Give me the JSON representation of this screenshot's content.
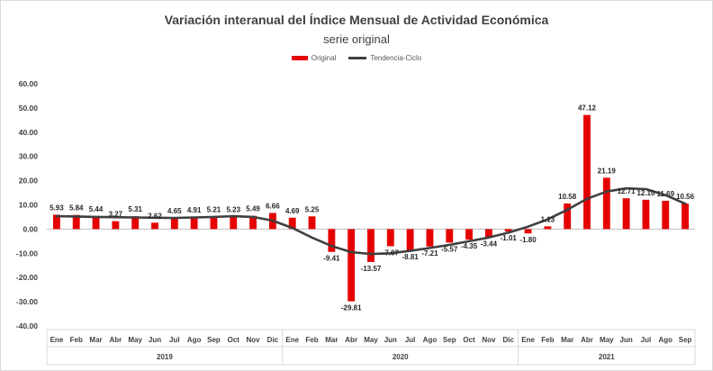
{
  "chart_data": {
    "type": "bar",
    "title": "Variación interanual del Índice Mensual de Actividad Económica",
    "subtitle": "serie original",
    "legend": {
      "placement": "top",
      "entries": [
        "Original",
        "Tendencia-Ciclo"
      ]
    },
    "years": [
      {
        "label": "2019",
        "count": 12
      },
      {
        "label": "2020",
        "count": 12
      },
      {
        "label": "2021",
        "count": 9
      }
    ],
    "categories": [
      "Ene",
      "Feb",
      "Mar",
      "Abr",
      "May",
      "Jun",
      "Jul",
      "Ago",
      "Sep",
      "Oct",
      "Nov",
      "Dic",
      "Ene",
      "Feb",
      "Mar",
      "Abr",
      "May",
      "Jun",
      "Jul",
      "Ago",
      "Sep",
      "Oct",
      "Nov",
      "Dic",
      "Ene",
      "Feb",
      "Mar",
      "Abr",
      "May",
      "Jun",
      "Jul",
      "Ago",
      "Sep"
    ],
    "series": [
      {
        "name": "Original",
        "type": "bar",
        "color": "#e60000",
        "values": [
          5.93,
          5.84,
          5.44,
          3.27,
          5.31,
          2.62,
          4.65,
          4.91,
          5.21,
          5.23,
          5.49,
          6.66,
          4.69,
          5.25,
          -9.41,
          -29.81,
          -13.57,
          -7.07,
          -8.81,
          -7.21,
          -5.57,
          -4.35,
          -3.44,
          -1.01,
          -1.8,
          1.13,
          10.58,
          47.12,
          21.19,
          12.71,
          12.1,
          11.69,
          10.56
        ],
        "labels": [
          "5.93",
          "5.84",
          "5.44",
          "3.27",
          "5.31",
          "2.62",
          "4.65",
          "4.91",
          "5.21",
          "5.23",
          "5.49",
          "6.66",
          "4.69",
          "5.25",
          "-9.41",
          "-29.81",
          "-13.57",
          "-7.07",
          "-8.81",
          "-7.21",
          "-5.57",
          "-4.35",
          "-3.44",
          "-1.01",
          "-1.80",
          "1.13",
          "10.58",
          "47.12",
          "21.19",
          "12.71",
          "12.10",
          "11.69",
          "10.56"
        ]
      },
      {
        "name": "Tendencia-Ciclo",
        "type": "line",
        "color": "#404040",
        "values": [
          5.3,
          5.2,
          5.0,
          4.9,
          4.8,
          4.7,
          4.6,
          4.8,
          5.0,
          5.3,
          5.0,
          3.5,
          0.5,
          -3.5,
          -7.0,
          -9.5,
          -10.3,
          -10.0,
          -9.0,
          -7.8,
          -6.5,
          -5.0,
          -3.5,
          -1.5,
          1.0,
          4.0,
          8.0,
          12.5,
          15.5,
          16.8,
          16.5,
          14.0,
          10.5
        ]
      }
    ],
    "ylim": [
      -40,
      60
    ],
    "yticks": [
      "-40.00",
      "-30.00",
      "-20.00",
      "-10.00",
      "0.00",
      "10.00",
      "20.00",
      "30.00",
      "40.00",
      "50.00",
      "60.00"
    ],
    "ytick_values": [
      -40,
      -30,
      -20,
      -10,
      0,
      10,
      20,
      30,
      40,
      50,
      60
    ],
    "grid": false
  }
}
